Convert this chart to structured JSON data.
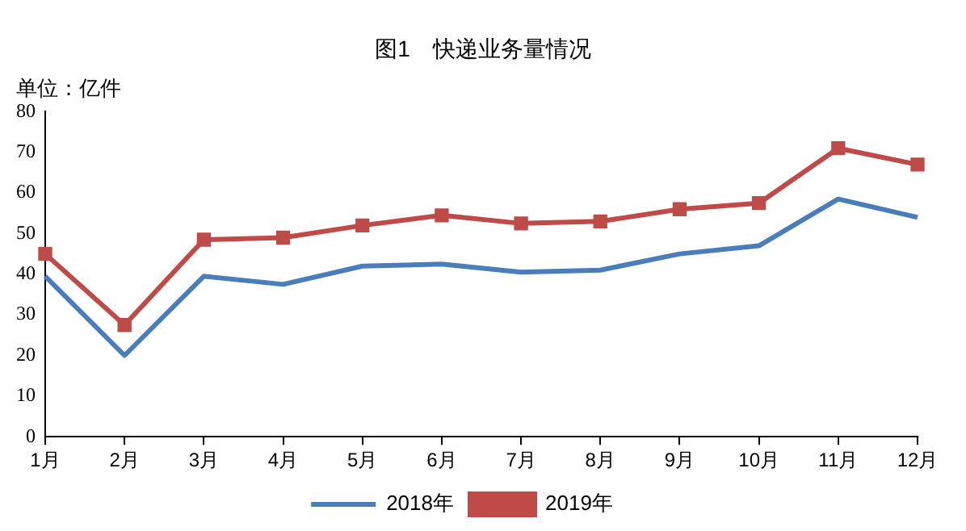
{
  "chart_data": {
    "type": "line",
    "title": "图1　快递业务量情况",
    "ylabel": "单位：亿件",
    "categories": [
      "1月",
      "2月",
      "3月",
      "4月",
      "5月",
      "6月",
      "7月",
      "8月",
      "9月",
      "10月",
      "11月",
      "12月"
    ],
    "series": [
      {
        "name": "2018年",
        "color": "#4a7ebb",
        "marker": "none",
        "values": [
          39.5,
          20,
          39.5,
          37.5,
          42,
          42.5,
          40.5,
          41,
          45,
          47,
          58.5,
          54
        ]
      },
      {
        "name": "2019年",
        "color": "#be4b48",
        "marker": "square",
        "values": [
          45,
          27.5,
          48.5,
          49,
          52,
          54.5,
          52.5,
          53,
          56,
          57.5,
          71,
          67
        ]
      }
    ],
    "ylim": [
      0,
      80
    ],
    "yticks": [
      0,
      10,
      20,
      30,
      40,
      50,
      60,
      70,
      80
    ],
    "grid": false,
    "legend": "bottom",
    "line_style": "solid"
  }
}
